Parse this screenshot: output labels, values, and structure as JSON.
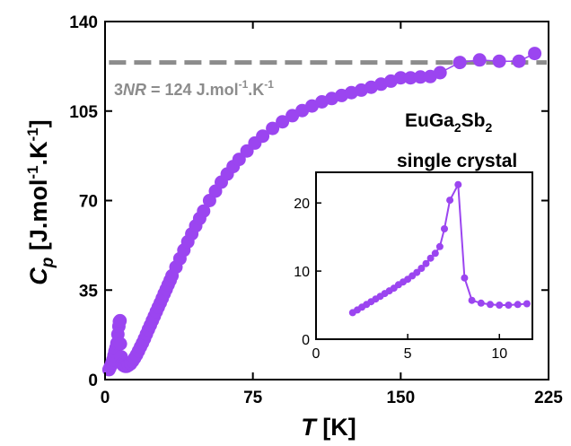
{
  "chart_data": [
    {
      "type": "scatter",
      "role": "main",
      "xlabel_symbol": "T",
      "xlabel_unit": " [K]",
      "ylabel_symbol": "C",
      "ylabel_sub": "p",
      "ylabel_unit": " [J.mol",
      "ylabel_sup1": "-1",
      "ylabel_mid": ".K",
      "ylabel_sup2": "-1",
      "ylabel_end": "]",
      "xlim": [
        0,
        225
      ],
      "ylim": [
        0,
        140
      ],
      "xticks": [
        0,
        75,
        150,
        225
      ],
      "yticks": [
        0,
        35,
        70,
        105,
        140
      ],
      "color": "#9b45f0",
      "reference_line": {
        "y": 124,
        "color": "#8c8c8c",
        "label_prefix": "3",
        "label_italic": "NR",
        "label_value": " = 124 J.mol",
        "label_sup1": "-1",
        "label_mid": ".K",
        "label_sup2": "-1"
      },
      "annotation_compound": [
        "EuGa",
        "2",
        "Sb",
        "2"
      ],
      "annotation_sample": "single crystal",
      "series": [
        {
          "x": [
            2,
            2.5,
            3,
            3.5,
            4,
            4.5,
            5,
            5.5,
            6,
            6.5,
            7,
            7.3,
            7.6,
            7.8,
            8.2,
            8.7,
            9.2,
            9.7,
            10.2,
            11,
            12,
            13,
            14,
            15,
            16,
            17,
            18,
            19,
            20,
            21,
            22,
            23,
            24,
            25,
            26,
            27,
            28,
            29,
            30,
            31,
            32,
            33,
            34,
            36,
            38,
            40,
            42,
            44,
            46,
            48,
            50,
            53,
            56,
            59,
            62,
            65,
            68,
            72,
            76,
            80,
            85,
            90,
            95,
            100,
            105,
            110,
            115,
            120,
            125,
            130,
            135,
            140,
            145,
            150,
            155,
            160,
            165,
            170,
            180,
            190,
            200,
            210,
            218
          ],
          "y": [
            3.9,
            4.7,
            5.5,
            6.6,
            7.8,
            9.4,
            11.0,
            12.4,
            14.2,
            17.7,
            20.8,
            22.7,
            23.0,
            14.0,
            8.9,
            6.2,
            5.6,
            5.4,
            5.2,
            5.2,
            5.6,
            6.2,
            7.2,
            8.4,
            9.7,
            11.2,
            12.8,
            14.3,
            16.0,
            17.8,
            19.6,
            21.3,
            23.1,
            24.8,
            26.6,
            28.3,
            30.0,
            31.8,
            33.6,
            35.3,
            37.1,
            38.8,
            40.6,
            44.0,
            47.3,
            50.6,
            53.9,
            57.0,
            60.1,
            63.0,
            65.9,
            70.0,
            73.7,
            77.2,
            80.4,
            83.3,
            86.1,
            89.4,
            92.5,
            95.2,
            98.2,
            100.8,
            103.2,
            105.2,
            107.0,
            108.6,
            109.9,
            111.1,
            112.2,
            113.2,
            114.3,
            115.5,
            116.7,
            118.0,
            118.0,
            118.3,
            118.5,
            120.0,
            124.0,
            125.0,
            124.5,
            124.5,
            127.5
          ]
        }
      ]
    },
    {
      "type": "line",
      "role": "inset",
      "xlim": [
        0,
        11.8
      ],
      "ylim": [
        0,
        24.5
      ],
      "xticks": [
        0,
        5,
        10
      ],
      "yticks": [
        0,
        10,
        20
      ],
      "color": "#9b45f0",
      "series": [
        {
          "x": [
            2,
            2.25,
            2.5,
            2.75,
            3,
            3.25,
            3.5,
            3.75,
            4,
            4.25,
            4.5,
            4.75,
            5,
            5.25,
            5.5,
            5.75,
            6,
            6.25,
            6.5,
            6.75,
            7,
            7.3,
            7.75,
            8.1,
            8.5,
            9,
            9.5,
            10,
            10.5,
            11,
            11.5
          ],
          "y": [
            3.9,
            4.3,
            4.7,
            5.1,
            5.5,
            5.9,
            6.3,
            6.7,
            7.1,
            7.5,
            8.0,
            8.4,
            8.8,
            9.3,
            9.8,
            10.4,
            11.1,
            11.9,
            12.6,
            13.6,
            16.2,
            20.4,
            22.7,
            9.0,
            5.7,
            5.3,
            5.1,
            5.0,
            5.0,
            5.1,
            5.2
          ]
        }
      ]
    }
  ]
}
